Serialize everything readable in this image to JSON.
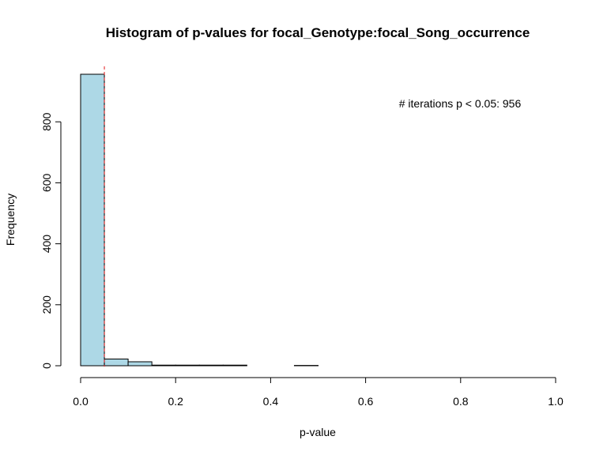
{
  "chart_data": {
    "type": "bar",
    "title": "Histogram of p-values for focal_Genotype:focal_Song_occurrence",
    "xlabel": "p-value",
    "ylabel": "Frequency",
    "xlim": [
      0,
      1
    ],
    "ylim": [
      0,
      956
    ],
    "x_ticks": [
      0.0,
      0.2,
      0.4,
      0.6,
      0.8,
      1.0
    ],
    "x_tick_labels": [
      "0.0",
      "0.2",
      "0.4",
      "0.6",
      "0.8",
      "1.0"
    ],
    "y_ticks": [
      0,
      200,
      400,
      600,
      800
    ],
    "y_tick_labels": [
      "0",
      "200",
      "400",
      "600",
      "800"
    ],
    "bin_width": 0.05,
    "bin_starts": [
      0.0,
      0.05,
      0.1,
      0.15,
      0.2,
      0.25,
      0.3,
      0.35,
      0.4,
      0.45,
      0.5,
      0.55,
      0.6,
      0.65,
      0.7,
      0.75,
      0.8,
      0.85,
      0.9,
      0.95
    ],
    "values": [
      956,
      22,
      13,
      2,
      2,
      2,
      2,
      0,
      0,
      1,
      0,
      0,
      0,
      0,
      0,
      0,
      0,
      0,
      0,
      0
    ],
    "threshold": 0.05,
    "annotation": "# iterations p < 0.05: 956",
    "grid": false,
    "legend": "none"
  },
  "colors": {
    "bar_fill": "#add8e6",
    "bar_stroke": "#000000",
    "threshold_line": "#e31a1c"
  }
}
